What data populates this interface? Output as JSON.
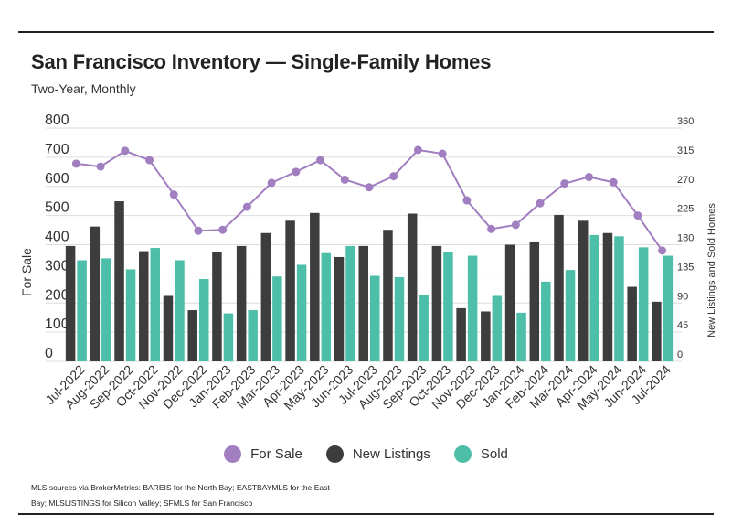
{
  "title": "San Francisco Inventory — Single-Family Homes",
  "subtitle": "Two-Year, Monthly",
  "source_line1": "MLS sources via BrokerMetrics: BAREIS for the North Bay; EASTBAYMLS for the East",
  "source_line2": "Bay; MLSLISTINGS for Silicon Valley; SFMLS for San Francisco",
  "colors": {
    "for_sale": "#a07ec0",
    "new_listings": "#3d3d3d",
    "sold": "#4dbfa8"
  },
  "chart_data": {
    "type": "bar",
    "categories": [
      "Jul-2022",
      "Aug-2022",
      "Sep-2022",
      "Oct-2022",
      "Nov-2022",
      "Dec-2022",
      "Jan-2023",
      "Feb-2023",
      "Mar-2023",
      "Apr-2023",
      "May-2023",
      "Jun-2023",
      "Jul-2023",
      "Aug-2023",
      "Sep-2023",
      "Oct-2023",
      "Nov-2023",
      "Dec-2023",
      "Jan-2024",
      "Feb-2024",
      "Mar-2024",
      "Apr-2024",
      "May-2024",
      "Jun-2024",
      "Jul-2024"
    ],
    "ylabel": "For Sale",
    "y2label": "New Listings and Sold Homes",
    "ylim": [
      0,
      800
    ],
    "y2lim": [
      0,
      360
    ],
    "yticks": [
      0,
      100,
      200,
      300,
      400,
      500,
      600,
      700,
      800
    ],
    "y2ticks": [
      0,
      45,
      90,
      135,
      180,
      225,
      270,
      315,
      360
    ],
    "series": [
      {
        "name": "For Sale",
        "type": "line",
        "axis": "left",
        "values": [
          678,
          668,
          722,
          690,
          572,
          448,
          451,
          530,
          612,
          650,
          690,
          623,
          597,
          635,
          725,
          712,
          552,
          454,
          468,
          542,
          610,
          632,
          614,
          500,
          380
        ]
      },
      {
        "name": "New Listings",
        "type": "bar",
        "axis": "right",
        "values": [
          178,
          208,
          247,
          170,
          101,
          79,
          168,
          178,
          198,
          217,
          229,
          161,
          178,
          203,
          228,
          178,
          82,
          77,
          180,
          185,
          226,
          217,
          198,
          115,
          92
        ]
      },
      {
        "name": "Sold",
        "type": "bar",
        "axis": "right",
        "values": [
          156,
          159,
          142,
          175,
          156,
          127,
          74,
          79,
          131,
          149,
          167,
          178,
          132,
          130,
          103,
          168,
          163,
          101,
          75,
          123,
          141,
          195,
          193,
          176,
          163
        ]
      }
    ],
    "legend": "bottom",
    "grid": true
  }
}
